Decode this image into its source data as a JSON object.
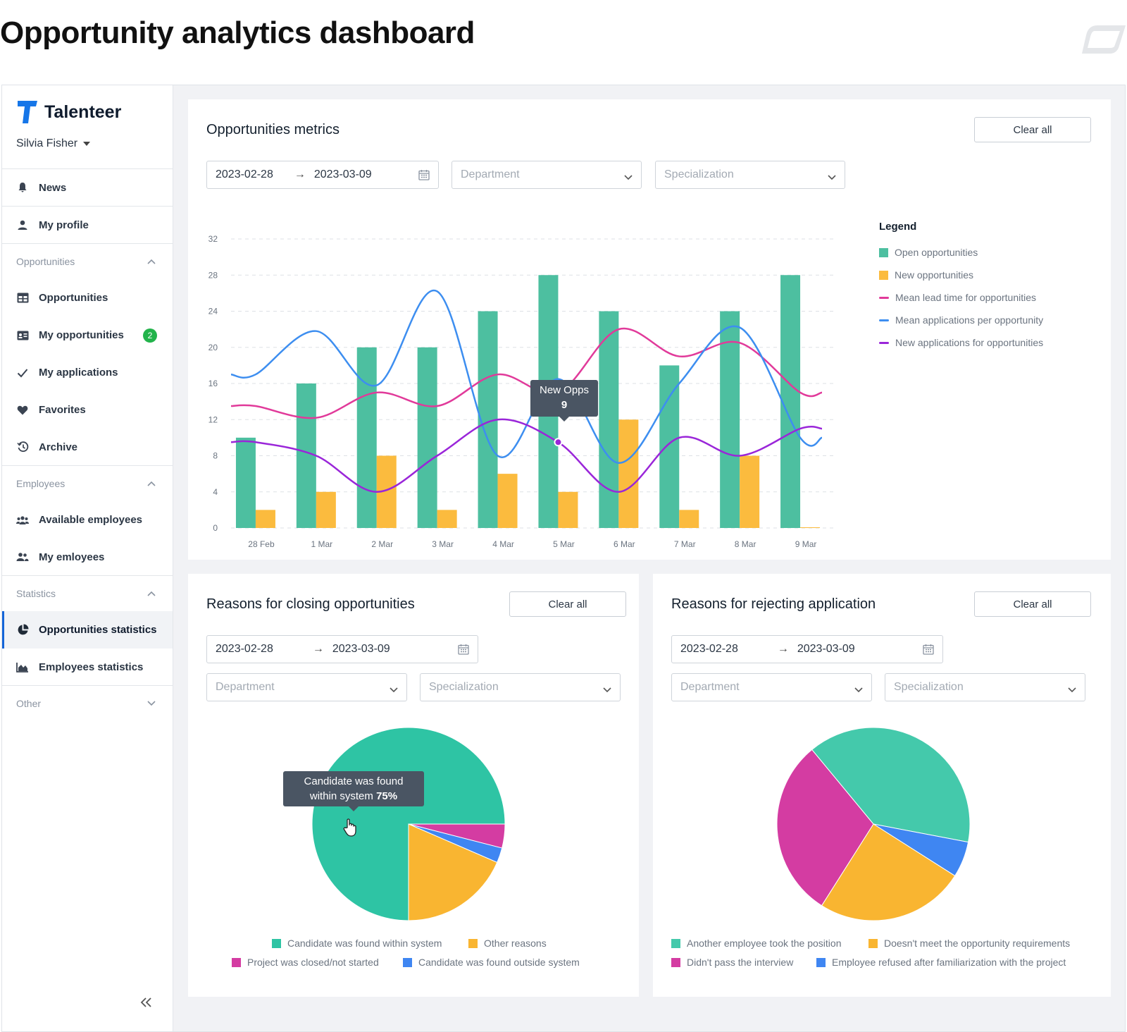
{
  "page_title": "Opportunity analytics dashboard",
  "sidebar": {
    "brand": "Talenteer",
    "user": "Silvia Fisher",
    "items": [
      {
        "label": "News",
        "icon": "bell-icon"
      },
      {
        "label": "My profile",
        "icon": "user-icon"
      }
    ],
    "groups": [
      {
        "label": "Opportunities",
        "expanded": true,
        "items": [
          {
            "label": "Opportunities",
            "icon": "table-icon"
          },
          {
            "label": "My opportunities",
            "icon": "id-card-icon",
            "badge": "2"
          },
          {
            "label": "My applications",
            "icon": "check-icon"
          },
          {
            "label": "Favorites",
            "icon": "heart-icon"
          },
          {
            "label": "Archive",
            "icon": "history-icon"
          }
        ]
      },
      {
        "label": "Employees",
        "expanded": true,
        "items": [
          {
            "label": "Available employees",
            "icon": "users-icon"
          },
          {
            "label": "My emloyees",
            "icon": "user-group-icon"
          }
        ]
      },
      {
        "label": "Statistics",
        "expanded": true,
        "items": [
          {
            "label": "Opportunities statistics",
            "icon": "pie-icon",
            "active": true
          },
          {
            "label": "Employees statistics",
            "icon": "area-chart-icon"
          }
        ]
      },
      {
        "label": "Other",
        "expanded": false,
        "items": []
      }
    ],
    "collapse_icon": "double-chevron-left-icon"
  },
  "metrics": {
    "title": "Opportunities metrics",
    "clear_label": "Clear all",
    "date_from": "2023-02-28",
    "date_to": "2023-03-09",
    "department_placeholder": "Department",
    "specialization_placeholder": "Specialization",
    "legend_title": "Legend",
    "tooltip": {
      "label": "New Opps",
      "value": "9"
    }
  },
  "closing": {
    "title": "Reasons for closing opportunities",
    "clear_label": "Clear all",
    "date_from": "2023-02-28",
    "date_to": "2023-03-09",
    "department_placeholder": "Department",
    "specialization_placeholder": "Specialization",
    "tooltip": {
      "line1": "Candidate was found",
      "line2": "within system",
      "value": "75%"
    }
  },
  "rejecting": {
    "title": "Reasons for rejecting application",
    "clear_label": "Clear all",
    "date_from": "2023-02-28",
    "date_to": "2023-03-09",
    "department_placeholder": "Department",
    "specialization_placeholder": "Specialization"
  },
  "colors": {
    "teal": "#4dbfa0",
    "amber": "#fbbb3e",
    "pink": "#e13a9a",
    "blue": "#3d8ef0",
    "purple": "#9a26d9",
    "pie_teal": "#2ec4a4",
    "pie_magenta": "#d43ca2",
    "pie_blue": "#3f86f2",
    "pie_amber": "#f9b531",
    "active_accent": "#1565d8"
  },
  "chart_data": [
    {
      "type": "bar",
      "categories": [
        "28 Feb",
        "1 Mar",
        "2 Mar",
        "3 Mar",
        "4 Mar",
        "5 Mar",
        "6 Mar",
        "7 Mar",
        "8 Mar",
        "9 Mar"
      ],
      "ylim": [
        0,
        32
      ],
      "yticks": [
        0,
        4,
        8,
        12,
        16,
        20,
        24,
        28,
        32
      ],
      "grid": true,
      "legend_position": "right",
      "series": [
        {
          "name": "Open opportunities",
          "kind": "bar",
          "color": "#4dbfa0",
          "values": [
            10,
            16,
            20,
            20,
            24,
            28,
            24,
            18,
            24,
            28
          ]
        },
        {
          "name": "New opportunities",
          "kind": "bar",
          "color": "#fbbb3e",
          "values": [
            2,
            4,
            8,
            2,
            6,
            4,
            12,
            2,
            8,
            0
          ]
        },
        {
          "name": "Mean lead time for opportunities",
          "kind": "line",
          "color": "#e13a9a",
          "values": [
            13.5,
            12.2,
            15,
            13.5,
            17,
            15,
            22,
            19,
            20.5,
            15
          ]
        },
        {
          "name": "Mean applications per opportunity",
          "kind": "line",
          "color": "#3d8ef0",
          "values": [
            17,
            21.8,
            15.8,
            26.2,
            8,
            16.5,
            7.2,
            16,
            22.2,
            10
          ]
        },
        {
          "name": "New applications for opportunities",
          "kind": "line",
          "color": "#9a26d9",
          "values": [
            9.5,
            8,
            4,
            8,
            12,
            9.5,
            4,
            10,
            8,
            11
          ]
        }
      ]
    },
    {
      "type": "pie",
      "slices": [
        {
          "label": "Candidate was found within system",
          "value": 75,
          "color": "#2ec4a4"
        },
        {
          "label": "Project was closed/not started",
          "value": 4,
          "color": "#d43ca2"
        },
        {
          "label": "Candidate was found outside system",
          "value": 2.5,
          "color": "#3f86f2"
        },
        {
          "label": "Other reasons",
          "value": 18.5,
          "color": "#f9b531"
        }
      ]
    },
    {
      "type": "pie",
      "slices": [
        {
          "label": "Another employee took the position",
          "value": 39,
          "color": "#44c9ab"
        },
        {
          "label": "Employee refused after familiarization with the project",
          "value": 6,
          "color": "#3f86f2"
        },
        {
          "label": "Doesn't meet the opportunity requirements",
          "value": 25,
          "color": "#f9b531"
        },
        {
          "label": "Didn't pass the interview",
          "value": 30,
          "color": "#d43ca2"
        }
      ]
    }
  ]
}
